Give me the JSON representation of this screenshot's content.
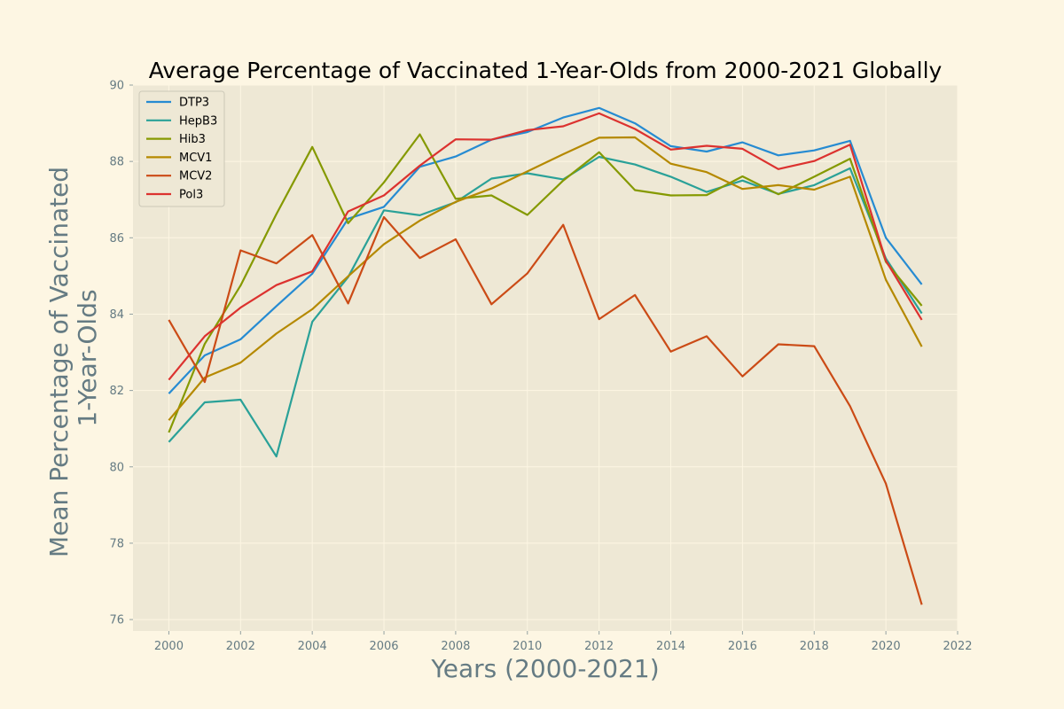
{
  "chart_data": {
    "type": "line",
    "title": "Average Percentage of Vaccinated 1-Year-Olds from 2000-2021 Globally",
    "xlabel": "Years (2000-2021)",
    "ylabel_lines": [
      "Mean Percentage of Vaccinated",
      "1-Year-Olds"
    ],
    "xlim": [
      1999,
      2022
    ],
    "ylim": [
      75.7,
      90
    ],
    "xticks": [
      2000,
      2002,
      2004,
      2006,
      2008,
      2010,
      2012,
      2014,
      2016,
      2018,
      2020,
      2022
    ],
    "yticks": [
      76,
      78,
      80,
      82,
      84,
      86,
      88,
      90
    ],
    "grid": true,
    "legend_position": "top-left",
    "x": [
      2000,
      2001,
      2002,
      2003,
      2004,
      2005,
      2006,
      2007,
      2008,
      2009,
      2010,
      2011,
      2012,
      2013,
      2014,
      2015,
      2016,
      2017,
      2018,
      2019,
      2020,
      2021
    ],
    "series": [
      {
        "name": "DTP3",
        "color": "#268bd2",
        "values": [
          81.92,
          82.92,
          83.34,
          84.21,
          85.06,
          86.5,
          86.81,
          87.86,
          88.13,
          88.57,
          88.77,
          89.15,
          89.4,
          89.0,
          88.4,
          88.26,
          88.5,
          88.16,
          88.29,
          88.54,
          86.0,
          84.78
        ]
      },
      {
        "name": "HepB3",
        "color": "#2aa198",
        "values": [
          80.65,
          81.69,
          81.76,
          80.27,
          83.8,
          84.97,
          86.72,
          86.59,
          86.93,
          87.55,
          87.69,
          87.53,
          88.12,
          87.92,
          87.6,
          87.2,
          87.5,
          87.15,
          87.38,
          87.82,
          85.46,
          84.02
        ]
      },
      {
        "name": "Hib3",
        "color": "#859900",
        "values": [
          80.9,
          83.22,
          84.75,
          86.62,
          88.38,
          86.38,
          87.45,
          88.71,
          87.02,
          87.11,
          86.6,
          87.5,
          88.24,
          87.25,
          87.11,
          87.12,
          87.61,
          87.14,
          87.6,
          88.07,
          85.37,
          84.22
        ]
      },
      {
        "name": "MCV1",
        "color": "#b58900",
        "values": [
          81.22,
          82.34,
          82.73,
          83.49,
          84.13,
          84.99,
          85.83,
          86.45,
          86.94,
          87.29,
          87.74,
          88.19,
          88.62,
          88.63,
          87.94,
          87.72,
          87.28,
          87.38,
          87.26,
          87.6,
          84.9,
          83.15
        ]
      },
      {
        "name": "MCV2",
        "color": "#cb4b16",
        "values": [
          83.85,
          82.22,
          85.67,
          85.33,
          86.07,
          84.28,
          86.54,
          85.47,
          85.96,
          84.26,
          85.07,
          86.34,
          83.87,
          84.5,
          83.02,
          83.42,
          82.37,
          83.21,
          83.16,
          81.59,
          79.56,
          76.39
        ]
      },
      {
        "name": "Pol3",
        "color": "#dc322f",
        "values": [
          82.28,
          83.42,
          84.17,
          84.76,
          85.12,
          86.69,
          87.11,
          87.89,
          88.58,
          88.57,
          88.82,
          88.92,
          89.26,
          88.85,
          88.31,
          88.41,
          88.33,
          87.8,
          88.01,
          88.44,
          85.4,
          83.85
        ]
      }
    ]
  }
}
